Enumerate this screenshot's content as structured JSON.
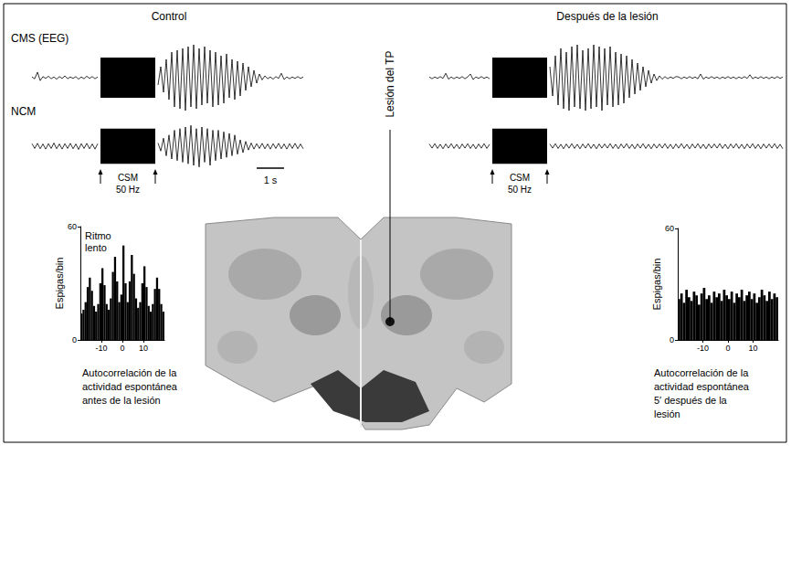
{
  "chart_data": [
    {
      "type": "line",
      "title": "Control",
      "color": "#000000",
      "tick_labels": false,
      "xlim": [
        0,
        10
      ],
      "ylim": [
        -1,
        1
      ],
      "x": [
        0,
        0.1,
        0.2,
        0.3,
        0.4,
        0.5,
        0.6,
        0.7,
        0.8,
        0.9,
        1,
        1.1,
        1.2,
        1.3,
        1.4,
        1.5,
        1.6,
        1.7,
        1.8,
        1.9,
        2,
        2.1,
        2.2,
        2.3,
        2.4,
        2.5,
        2.6,
        2.7,
        2.8,
        2.9,
        3,
        3.1,
        3.2,
        3.3,
        3.4,
        3.5,
        3.6,
        3.7,
        3.8,
        3.9,
        4,
        4.1,
        4.2,
        4.3,
        4.4,
        4.5,
        4.6,
        4.7,
        4.8,
        4.9,
        5,
        5.1,
        5.2,
        5.3,
        5.4,
        5.5,
        5.6,
        5.7,
        5.8,
        5.9,
        6,
        6.1,
        6.2,
        6.3,
        6.4,
        6.5,
        6.6,
        6.7,
        6.8,
        6.9,
        7,
        7.1,
        7.2,
        7.3,
        7.4,
        7.5,
        7.6,
        7.7,
        7.8,
        7.9,
        8,
        8.1,
        8.2,
        8.3,
        8.4,
        8.5,
        8.6,
        8.7,
        8.8,
        8.9,
        9,
        9.1,
        9.2,
        9.3,
        9.4,
        9.5,
        9.6,
        9.7,
        9.8,
        9.9
      ],
      "series": [
        {
          "name": "CMS (EEG)",
          "values": [
            0.02,
            -0.03,
            0.15,
            -0.08,
            0.03,
            -0.02,
            0.04,
            -0.03,
            0.02,
            -0.04,
            0.03,
            -0.02,
            0.05,
            -0.03,
            0.02,
            -0.02,
            0.03,
            -0.04,
            0.02,
            -0.03,
            0.04,
            -0.02,
            0.03,
            -0.03,
            0.02,
            null,
            null,
            null,
            null,
            null,
            null,
            null,
            null,
            null,
            null,
            null,
            null,
            null,
            null,
            null,
            null,
            null,
            null,
            null,
            null,
            null,
            -0.2,
            0.3,
            -0.4,
            0.5,
            -0.6,
            0.7,
            -0.8,
            0.75,
            -0.85,
            0.8,
            -0.9,
            0.85,
            -0.8,
            0.9,
            -0.85,
            0.8,
            -0.75,
            0.85,
            -0.7,
            0.75,
            -0.8,
            0.7,
            -0.75,
            0.6,
            -0.7,
            0.65,
            -0.55,
            0.5,
            -0.6,
            0.45,
            -0.5,
            0.4,
            -0.35,
            0.3,
            -0.25,
            0.2,
            -0.15,
            0.1,
            -0.06,
            0.05,
            -0.03,
            0.02,
            -0.04,
            0.03,
            -0.02,
            0.12,
            -0.05,
            0.02,
            -0.03,
            0.02,
            -0.02,
            0.03,
            -0.02,
            0.02
          ]
        },
        {
          "name": "NCM",
          "values": [
            0.08,
            -0.07,
            0.09,
            -0.08,
            0.07,
            -0.09,
            0.08,
            -0.07,
            0.1,
            -0.08,
            0.07,
            -0.09,
            0.08,
            -0.07,
            0.09,
            -0.08,
            0.07,
            -0.1,
            0.08,
            -0.07,
            0.09,
            -0.08,
            0.07,
            -0.09,
            0.08,
            null,
            null,
            null,
            null,
            null,
            null,
            null,
            null,
            null,
            null,
            null,
            null,
            null,
            null,
            null,
            null,
            null,
            null,
            null,
            null,
            null,
            0.1,
            -0.15,
            0.25,
            -0.3,
            0.35,
            -0.4,
            0.5,
            -0.45,
            0.55,
            -0.5,
            0.6,
            -0.55,
            0.65,
            -0.6,
            0.55,
            -0.65,
            0.6,
            -0.5,
            0.55,
            -0.6,
            0.5,
            -0.45,
            0.5,
            -0.4,
            0.45,
            -0.35,
            0.4,
            -0.3,
            0.35,
            -0.25,
            0.2,
            -0.2,
            0.15,
            -0.12,
            0.1,
            -0.09,
            0.08,
            -0.07,
            0.09,
            -0.08,
            0.07,
            -0.09,
            0.08,
            -0.07,
            0.09,
            -0.08,
            0.07,
            -0.09,
            0.08,
            -0.07,
            0.09,
            -0.08,
            0.07,
            -0.08
          ]
        }
      ],
      "stimulus": {
        "label": "CSM",
        "frequency": "50 Hz",
        "x": [
          2.5,
          4.5
        ],
        "y": [
          -0.55,
          0.55
        ]
      },
      "scale_bar": {
        "label": "1 s",
        "length": 1
      }
    },
    {
      "type": "line",
      "title": "Después de la lesión",
      "color": "#000000",
      "tick_labels": false,
      "xlim": [
        0,
        13
      ],
      "ylim": [
        -1,
        1
      ],
      "x": [
        0,
        0.1,
        0.2,
        0.3,
        0.4,
        0.5,
        0.6,
        0.7,
        0.8,
        0.9,
        1,
        1.1,
        1.2,
        1.3,
        1.4,
        1.5,
        1.6,
        1.7,
        1.8,
        1.9,
        2,
        2.1,
        2.2,
        2.3,
        2.4,
        2.5,
        2.6,
        2.7,
        2.8,
        2.9,
        3,
        3.1,
        3.2,
        3.3,
        3.4,
        3.5,
        3.6,
        3.7,
        3.8,
        3.9,
        4,
        4.1,
        4.2,
        4.3,
        4.4,
        4.5,
        4.6,
        4.7,
        4.8,
        4.9,
        5,
        5.1,
        5.2,
        5.3,
        5.4,
        5.5,
        5.6,
        5.7,
        5.8,
        5.9,
        6,
        6.1,
        6.2,
        6.3,
        6.4,
        6.5,
        6.6,
        6.7,
        6.8,
        6.9,
        7,
        7.1,
        7.2,
        7.3,
        7.4,
        7.5,
        7.6,
        7.7,
        7.8,
        7.9,
        8,
        8.1,
        8.2,
        8.3,
        8.4,
        8.5,
        8.6,
        8.7,
        8.8,
        8.9,
        9,
        9.1,
        9.2,
        9.3,
        9.4,
        9.5,
        9.6,
        9.7,
        9.8,
        9.9,
        10,
        10.1,
        10.2,
        10.3,
        10.4,
        10.5,
        10.6,
        10.7,
        10.8,
        10.9,
        11,
        11.1,
        11.2,
        11.3,
        11.4,
        11.5,
        11.6,
        11.7,
        11.8,
        11.9,
        12,
        12.1,
        12.2,
        12.3,
        12.4,
        12.5,
        12.6,
        12.7,
        12.8,
        12.9
      ],
      "series": [
        {
          "values": [
            0.02,
            -0.03,
            0.02,
            -0.02,
            0.03,
            -0.02,
            0.12,
            -0.04,
            0.02,
            -0.03,
            0.02,
            -0.02,
            0.03,
            -0.03,
            0.02,
            0.1,
            -0.05,
            0.02,
            -0.02,
            0.03,
            -0.02,
            0.02,
            -0.03,
            null,
            null,
            null,
            null,
            null,
            null,
            null,
            null,
            null,
            null,
            null,
            null,
            null,
            null,
            null,
            null,
            null,
            null,
            null,
            null,
            null,
            0.3,
            -0.5,
            0.6,
            -0.75,
            0.8,
            -0.85,
            0.7,
            -0.9,
            0.85,
            -0.8,
            0.9,
            -0.85,
            0.75,
            -0.9,
            0.8,
            -0.85,
            0.9,
            -0.8,
            0.85,
            -0.9,
            0.8,
            -0.75,
            0.85,
            -0.8,
            0.7,
            -0.75,
            0.65,
            -0.7,
            0.6,
            -0.55,
            0.5,
            -0.45,
            0.4,
            -0.35,
            0.3,
            -0.25,
            0.2,
            -0.15,
            0.1,
            -0.08,
            0.05,
            -0.04,
            0.03,
            -0.03,
            0.02,
            -0.02,
            0.03,
            0.02,
            -0.03,
            0.02,
            -0.02,
            0.03,
            -0.02,
            0.02,
            -0.03,
            0.1,
            -0.04,
            0.02,
            -0.02,
            0.03,
            -0.02,
            0.02,
            -0.03,
            0.02,
            -0.02,
            0.03,
            -0.02,
            0.02,
            -0.03,
            0.02,
            -0.02,
            0.03,
            -0.02,
            0.08,
            -0.03,
            0.02,
            -0.02,
            0.03,
            -0.02,
            0.02,
            -0.03,
            0.02,
            -0.02,
            0.03,
            -0.02,
            0.02
          ]
        },
        {
          "values": [
            0.07,
            -0.06,
            0.08,
            -0.07,
            0.06,
            -0.08,
            0.07,
            -0.06,
            0.08,
            -0.07,
            0.06,
            -0.08,
            0.07,
            -0.06,
            0.08,
            -0.07,
            0.06,
            -0.08,
            0.07,
            -0.06,
            0.08,
            -0.07,
            0.06,
            null,
            null,
            null,
            null,
            null,
            null,
            null,
            null,
            null,
            null,
            null,
            null,
            null,
            null,
            null,
            null,
            null,
            null,
            null,
            null,
            null,
            0.07,
            -0.06,
            0.08,
            -0.07,
            0.06,
            -0.08,
            0.07,
            -0.06,
            0.08,
            -0.07,
            0.06,
            -0.08,
            0.07,
            -0.06,
            0.08,
            -0.07,
            0.06,
            -0.08,
            0.07,
            -0.06,
            0.07,
            -0.06,
            0.08,
            -0.07,
            0.06,
            -0.08,
            0.07,
            -0.06,
            0.08,
            -0.07,
            0.06,
            -0.08,
            0.07,
            -0.06,
            0.08,
            -0.07,
            0.06,
            -0.08,
            0.07,
            -0.06,
            0.07,
            -0.06,
            0.08,
            -0.07,
            0.06,
            -0.08,
            0.07,
            -0.06,
            0.08,
            -0.07,
            0.06,
            -0.08,
            0.07,
            -0.06,
            0.08,
            -0.07,
            0.06,
            -0.08,
            0.07,
            -0.06,
            0.07,
            -0.06,
            0.08,
            -0.07,
            0.06,
            -0.08,
            0.07,
            -0.06,
            0.08,
            -0.07,
            0.06,
            -0.08,
            0.07,
            -0.06,
            0.08,
            -0.07,
            0.06,
            -0.08,
            0.07,
            -0.06,
            0.07,
            -0.06,
            0.08,
            -0.07,
            0.06,
            -0.08
          ]
        }
      ],
      "stimulus": {
        "label": "CSM",
        "frequency": "50 Hz",
        "x": [
          2.3,
          4.3
        ],
        "y": [
          -0.55,
          0.55
        ]
      }
    },
    {
      "type": "histogram",
      "color": "#000000",
      "annotations": [
        "Ritmo lento"
      ],
      "ylabel": "Espigas/bin",
      "caption": "Autocorrelación de la actividad espontánea antes de la lesión",
      "xlim": [
        -20,
        20
      ],
      "ylim": [
        0,
        60
      ],
      "xticks": [
        -10,
        0,
        10
      ],
      "yticks": [
        0,
        60
      ],
      "bins": [
        -20,
        -19,
        -18,
        -17,
        -16,
        -15,
        -14,
        -13,
        -12,
        -11,
        -10,
        -9,
        -8,
        -7,
        -6,
        -5,
        -4,
        -3,
        -2,
        -1,
        0,
        1,
        2,
        3,
        4,
        5,
        6,
        7,
        8,
        9,
        10,
        11,
        12,
        13,
        14,
        15,
        16,
        17,
        18,
        19,
        20
      ],
      "values": [
        14,
        16,
        20,
        28,
        33,
        26,
        18,
        15,
        19,
        30,
        38,
        29,
        19,
        16,
        22,
        36,
        44,
        31,
        20,
        24,
        50,
        30,
        20,
        31,
        45,
        35,
        22,
        17,
        20,
        30,
        39,
        28,
        18,
        15,
        19,
        27,
        33,
        27,
        19,
        15
      ]
    },
    {
      "type": "histogram",
      "color": "#000000",
      "ylabel": "Espigas/bin",
      "caption": "Autocorrelación de la actividad espontánea 5′ después de la lesión",
      "xlim": [
        -20,
        20
      ],
      "ylim": [
        0,
        60
      ],
      "xticks": [
        -10,
        0,
        10
      ],
      "yticks": [
        0,
        60
      ],
      "bins": [
        -20,
        -19,
        -18,
        -17,
        -16,
        -15,
        -14,
        -13,
        -12,
        -11,
        -10,
        -9,
        -8,
        -7,
        -6,
        -5,
        -4,
        -3,
        -2,
        -1,
        0,
        1,
        2,
        3,
        4,
        5,
        6,
        7,
        8,
        9,
        10,
        11,
        12,
        13,
        14,
        15,
        16,
        17,
        18,
        19,
        20
      ],
      "values": [
        22,
        25,
        20,
        27,
        23,
        21,
        26,
        24,
        19,
        25,
        28,
        22,
        24,
        20,
        26,
        23,
        25,
        21,
        27,
        24,
        22,
        26,
        20,
        25,
        23,
        27,
        21,
        24,
        26,
        22,
        25,
        20,
        23,
        27,
        24,
        21,
        26,
        22,
        25,
        23
      ]
    }
  ],
  "histology": {
    "label": "Lesión del TP"
  }
}
